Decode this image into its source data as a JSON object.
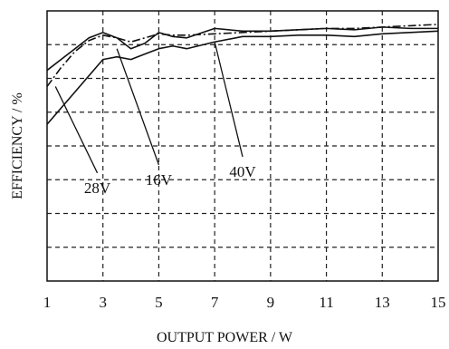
{
  "chart_data": {
    "type": "line",
    "title": "",
    "xlabel": "OUTPUT POWER / W",
    "ylabel": "EFFICIENCY   / %",
    "xlim": [
      1,
      15
    ],
    "ylim": [
      0,
      1
    ],
    "x_ticks": [
      1,
      3,
      5,
      7,
      9,
      11,
      13,
      15
    ],
    "x_tick_labels": [
      "1",
      "3",
      "5",
      "7",
      "9",
      "11",
      "13",
      "15"
    ],
    "y_gridlines": 7,
    "grid": true,
    "grid_style": "dashed",
    "series": [
      {
        "name": "28V",
        "style": "dashed",
        "x": [
          1,
          1.5,
          2,
          2.5,
          3,
          3.5,
          4,
          4.5,
          5,
          5.5,
          6,
          7,
          8,
          9,
          10,
          11,
          12,
          13,
          14,
          15
        ],
        "y": [
          0.72,
          0.79,
          0.85,
          0.89,
          0.91,
          0.9,
          0.885,
          0.9,
          0.915,
          0.91,
          0.91,
          0.915,
          0.92,
          0.925,
          0.93,
          0.935,
          0.935,
          0.94,
          0.945,
          0.95
        ]
      },
      {
        "name": "16V",
        "style": "solid",
        "x": [
          1,
          1.5,
          2,
          2.5,
          3,
          3.5,
          4,
          4.5,
          5,
          5.5,
          6,
          7,
          8,
          9,
          10,
          11,
          12,
          13,
          14,
          15
        ],
        "y": [
          0.78,
          0.82,
          0.86,
          0.9,
          0.92,
          0.9,
          0.86,
          0.88,
          0.92,
          0.905,
          0.9,
          0.935,
          0.925,
          0.925,
          0.93,
          0.935,
          0.93,
          0.94,
          0.935,
          0.935
        ]
      },
      {
        "name": "40V",
        "style": "solid",
        "x": [
          1,
          1.5,
          2,
          2.5,
          3,
          3.5,
          4,
          4.5,
          5,
          5.5,
          6,
          7,
          8,
          9,
          10,
          11,
          12,
          13,
          14,
          15
        ],
        "y": [
          0.58,
          0.64,
          0.7,
          0.76,
          0.82,
          0.83,
          0.82,
          0.84,
          0.86,
          0.87,
          0.86,
          0.885,
          0.905,
          0.905,
          0.91,
          0.91,
          0.905,
          0.915,
          0.92,
          0.925
        ]
      }
    ],
    "annotations": [
      {
        "label": "28V",
        "series": "28V",
        "point": [
          1.3,
          0.72
        ],
        "text_at": [
          2.8,
          0.4
        ]
      },
      {
        "label": "16V",
        "series": "16V",
        "point": [
          3.5,
          0.86
        ],
        "text_at": [
          5.0,
          0.43
        ]
      },
      {
        "label": "40V",
        "series": "40V",
        "point": [
          7.0,
          0.885
        ],
        "text_at": [
          8.0,
          0.46
        ]
      }
    ]
  }
}
